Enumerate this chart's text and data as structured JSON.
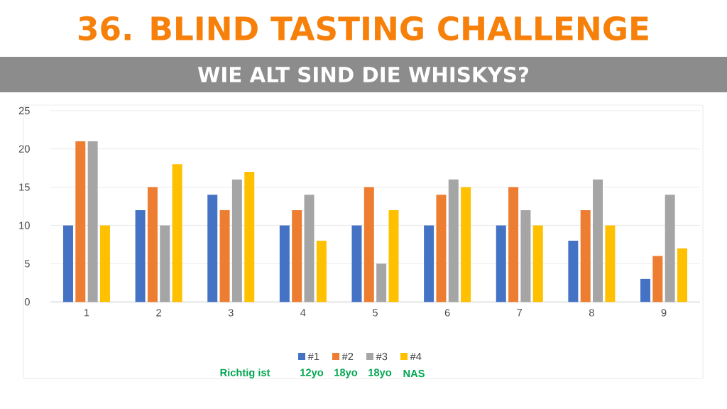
{
  "chart_data": {
    "type": "bar",
    "title": "36. BLIND TASTING CHALLENGE",
    "subtitle": "WIE ALT SIND DIE WHISKYS?",
    "categories": [
      "1",
      "2",
      "3",
      "4",
      "5",
      "6",
      "7",
      "8",
      "9"
    ],
    "series": [
      {
        "name": "#1",
        "color": "#4472c4",
        "values": [
          10,
          12,
          14,
          10,
          10,
          10,
          10,
          8,
          3
        ]
      },
      {
        "name": "#2",
        "color": "#ed7d31",
        "values": [
          21,
          15,
          12,
          12,
          15,
          14,
          15,
          12,
          6
        ]
      },
      {
        "name": "#3",
        "color": "#a5a5a5",
        "values": [
          21,
          10,
          16,
          14,
          5,
          16,
          12,
          16,
          14
        ]
      },
      {
        "name": "#4",
        "color": "#ffc000",
        "values": [
          10,
          18,
          17,
          8,
          12,
          15,
          10,
          10,
          7
        ]
      }
    ],
    "ylim": [
      0,
      25
    ],
    "yticks": [
      0,
      5,
      10,
      15,
      20,
      25
    ],
    "grid": "y",
    "legend": "bottom",
    "annotations": [
      "Richtig ist",
      "12yo",
      "18yo",
      "18yo",
      "NAS"
    ]
  }
}
